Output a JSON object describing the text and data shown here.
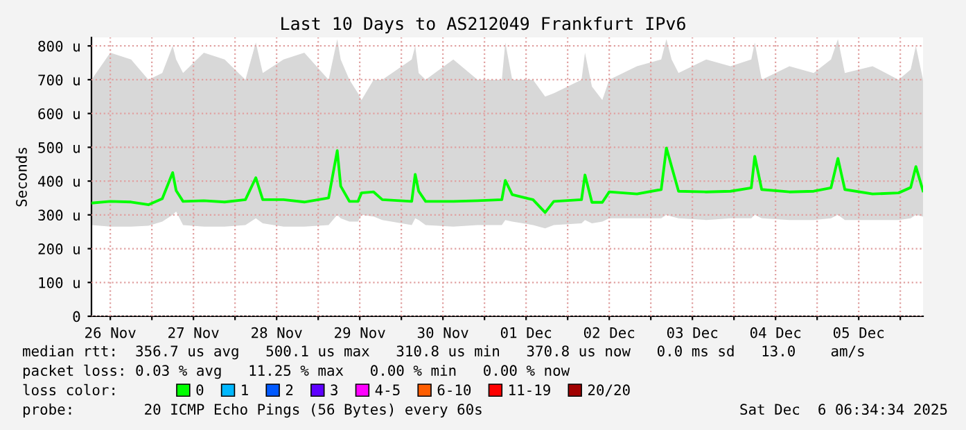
{
  "chart_data": {
    "type": "line",
    "title": "Last 10 Days to AS212049 Frankfurt IPv6",
    "ylabel": "Seconds",
    "legend_title": "loss color:",
    "legend": "bottom",
    "grid": true,
    "x": [
      "2025-11-26T06:34",
      "2025-11-26T12:00",
      "2025-11-26T18:00",
      "2025-11-26T23:00",
      "2025-11-27T03:00",
      "2025-11-27T06:00",
      "2025-11-27T07:00",
      "2025-11-27T09:00",
      "2025-11-27T15:00",
      "2025-11-27T21:00",
      "2025-11-28T03:00",
      "2025-11-28T06:00",
      "2025-11-28T08:00",
      "2025-11-28T14:00",
      "2025-11-28T20:00",
      "2025-11-29T03:00",
      "2025-11-29T05:30",
      "2025-11-29T06:30",
      "2025-11-29T09:00",
      "2025-11-29T11:30",
      "2025-11-29T12:30",
      "2025-11-29T16:00",
      "2025-11-29T18:30",
      "2025-11-30T03:00",
      "2025-11-30T04:00",
      "2025-11-30T05:00",
      "2025-11-30T07:00",
      "2025-11-30T15:00",
      "2025-11-30T22:00",
      "2025-12-01T05:00",
      "2025-12-01T06:00",
      "2025-12-01T08:00",
      "2025-12-01T14:00",
      "2025-12-01T17:30",
      "2025-12-01T20:00",
      "2025-12-02T04:00",
      "2025-12-02T05:00",
      "2025-12-02T07:00",
      "2025-12-02T10:00",
      "2025-12-02T12:00",
      "2025-12-02T20:00",
      "2025-12-03T03:00",
      "2025-12-03T04:30",
      "2025-12-03T06:00",
      "2025-12-03T08:00",
      "2025-12-03T16:00",
      "2025-12-03T23:00",
      "2025-12-04T05:00",
      "2025-12-04T06:00",
      "2025-12-04T08:00",
      "2025-12-04T16:00",
      "2025-12-04T23:00",
      "2025-12-05T04:00",
      "2025-12-05T06:00",
      "2025-12-05T08:00",
      "2025-12-05T16:00",
      "2025-12-05T23:30",
      "2025-12-06T03:00",
      "2025-12-06T04:30",
      "2025-12-06T06:34"
    ],
    "series": [
      {
        "name": "0",
        "color": "#00ff00",
        "values": [
          335,
          340,
          338,
          330,
          348,
          425,
          372,
          340,
          342,
          338,
          345,
          410,
          345,
          345,
          338,
          350,
          490,
          385,
          340,
          340,
          365,
          368,
          345,
          340,
          420,
          370,
          340,
          340,
          342,
          345,
          402,
          360,
          345,
          307,
          340,
          345,
          418,
          337,
          337,
          368,
          362,
          375,
          498,
          443,
          370,
          368,
          370,
          380,
          473,
          375,
          368,
          370,
          380,
          467,
          375,
          362,
          365,
          381,
          443,
          371
        ],
        "lower": [
          270,
          265,
          265,
          268,
          280,
          300,
          310,
          270,
          265,
          265,
          270,
          290,
          275,
          265,
          265,
          270,
          300,
          290,
          280,
          280,
          300,
          295,
          285,
          270,
          290,
          285,
          270,
          265,
          270,
          270,
          285,
          280,
          270,
          260,
          270,
          275,
          285,
          275,
          280,
          290,
          290,
          290,
          300,
          295,
          290,
          285,
          290,
          290,
          300,
          290,
          285,
          285,
          290,
          300,
          285,
          285,
          285,
          290,
          300,
          295
        ],
        "upper": [
          700,
          780,
          760,
          700,
          720,
          800,
          760,
          720,
          780,
          760,
          700,
          810,
          720,
          760,
          780,
          700,
          820,
          760,
          700,
          660,
          640,
          700,
          700,
          760,
          800,
          720,
          700,
          760,
          700,
          700,
          810,
          700,
          700,
          650,
          660,
          700,
          780,
          680,
          640,
          700,
          740,
          760,
          820,
          760,
          720,
          760,
          740,
          760,
          810,
          700,
          740,
          720,
          760,
          820,
          720,
          740,
          700,
          730,
          800,
          700
        ]
      },
      {
        "name": "1",
        "color": "#00b8ff",
        "values": [
          null,
          null,
          null,
          null,
          null,
          null,
          null,
          null,
          null,
          null,
          null,
          null,
          null,
          null,
          null,
          null,
          null,
          null,
          null,
          null,
          null,
          null,
          null,
          null,
          null,
          null,
          null,
          null,
          null,
          null,
          null,
          null,
          null,
          null,
          null,
          null,
          null,
          null,
          null,
          null,
          null,
          null,
          null,
          null,
          null,
          null,
          null,
          null,
          null,
          null,
          null,
          null,
          null,
          null,
          null,
          null,
          null,
          null,
          null,
          null
        ]
      },
      {
        "name": "2",
        "color": "#0059ff",
        "values": [
          null,
          null,
          null,
          null,
          null,
          null,
          null,
          null,
          null,
          null,
          null,
          null,
          null,
          null,
          null,
          null,
          null,
          null,
          null,
          null,
          null,
          null,
          null,
          null,
          null,
          null,
          null,
          null,
          null,
          null,
          null,
          null,
          null,
          null,
          null,
          null,
          null,
          null,
          null,
          null,
          null,
          null,
          null,
          null,
          null,
          null,
          null,
          null,
          null,
          null,
          null,
          null,
          null,
          null,
          null,
          null,
          null,
          null,
          null,
          null
        ]
      },
      {
        "name": "3",
        "color": "#5e00ff",
        "values": [
          null,
          null,
          null,
          null,
          null,
          null,
          null,
          null,
          null,
          null,
          null,
          null,
          null,
          null,
          null,
          null,
          null,
          null,
          null,
          null,
          null,
          null,
          null,
          null,
          null,
          null,
          null,
          null,
          null,
          null,
          null,
          null,
          null,
          null,
          null,
          null,
          null,
          null,
          null,
          null,
          null,
          null,
          null,
          null,
          null,
          null,
          null,
          null,
          null,
          null,
          null,
          null,
          null,
          null,
          null,
          null,
          null,
          null,
          null,
          null
        ]
      },
      {
        "name": "4-5",
        "color": "#ff00ff",
        "values": [
          null,
          null,
          null,
          null,
          null,
          null,
          null,
          null,
          null,
          null,
          null,
          null,
          null,
          null,
          null,
          null,
          null,
          null,
          null,
          null,
          null,
          null,
          null,
          null,
          null,
          null,
          null,
          null,
          null,
          null,
          null,
          null,
          null,
          null,
          null,
          null,
          null,
          null,
          null,
          null,
          null,
          null,
          null,
          null,
          null,
          null,
          null,
          null,
          null,
          null,
          null,
          null,
          null,
          null,
          null,
          null,
          null,
          null,
          null,
          null
        ]
      },
      {
        "name": "6-10",
        "color": "#ff5e00",
        "values": [
          null,
          null,
          null,
          null,
          null,
          null,
          null,
          null,
          null,
          null,
          null,
          null,
          null,
          null,
          null,
          null,
          null,
          null,
          null,
          null,
          null,
          null,
          null,
          null,
          null,
          null,
          null,
          null,
          null,
          null,
          null,
          null,
          null,
          null,
          null,
          null,
          null,
          null,
          null,
          null,
          null,
          null,
          null,
          null,
          null,
          null,
          null,
          null,
          null,
          null,
          null,
          null,
          null,
          null,
          null,
          null,
          null,
          null,
          null,
          null
        ]
      },
      {
        "name": "11-19",
        "color": "#ff0000",
        "values": [
          null,
          null,
          null,
          null,
          null,
          null,
          null,
          null,
          null,
          null,
          null,
          null,
          null,
          null,
          null,
          null,
          null,
          null,
          null,
          null,
          null,
          null,
          null,
          null,
          null,
          null,
          null,
          null,
          null,
          null,
          null,
          null,
          null,
          null,
          null,
          null,
          null,
          null,
          null,
          null,
          null,
          null,
          null,
          null,
          null,
          null,
          null,
          null,
          null,
          null,
          null,
          null,
          null,
          null,
          null,
          null,
          null,
          null,
          null,
          null
        ]
      },
      {
        "name": "20/20",
        "color": "#a10000",
        "values": [
          null,
          null,
          null,
          null,
          null,
          null,
          null,
          null,
          null,
          null,
          null,
          null,
          null,
          null,
          null,
          null,
          null,
          null,
          null,
          null,
          null,
          null,
          null,
          null,
          null,
          null,
          null,
          null,
          null,
          null,
          null,
          null,
          null,
          null,
          null,
          null,
          null,
          null,
          null,
          null,
          null,
          null,
          null,
          null,
          null,
          null,
          null,
          null,
          null,
          null,
          null,
          null,
          null,
          null,
          null,
          null,
          null,
          null,
          null,
          null
        ]
      }
    ],
    "xlim": [
      "2025-11-26T06:34",
      "2025-12-06T06:34"
    ],
    "xticks": [
      {
        "value": "2025-11-26T12:00",
        "label": "26 Nov"
      },
      {
        "value": "2025-11-27T00:00",
        "label": null
      },
      {
        "value": "2025-11-27T12:00",
        "label": "27 Nov"
      },
      {
        "value": "2025-11-28T00:00",
        "label": null
      },
      {
        "value": "2025-11-28T12:00",
        "label": "28 Nov"
      },
      {
        "value": "2025-11-29T00:00",
        "label": null
      },
      {
        "value": "2025-11-29T12:00",
        "label": "29 Nov"
      },
      {
        "value": "2025-11-30T00:00",
        "label": null
      },
      {
        "value": "2025-11-30T12:00",
        "label": "30 Nov"
      },
      {
        "value": "2025-12-01T00:00",
        "label": null
      },
      {
        "value": "2025-12-01T12:00",
        "label": "01 Dec"
      },
      {
        "value": "2025-12-02T00:00",
        "label": null
      },
      {
        "value": "2025-12-02T12:00",
        "label": "02 Dec"
      },
      {
        "value": "2025-12-03T00:00",
        "label": null
      },
      {
        "value": "2025-12-03T12:00",
        "label": "03 Dec"
      },
      {
        "value": "2025-12-04T00:00",
        "label": null
      },
      {
        "value": "2025-12-04T12:00",
        "label": "04 Dec"
      },
      {
        "value": "2025-12-05T00:00",
        "label": null
      },
      {
        "value": "2025-12-05T12:00",
        "label": "05 Dec"
      },
      {
        "value": "2025-12-06T00:00",
        "label": null
      }
    ],
    "ylim": [
      0,
      825
    ],
    "yticks": [
      0,
      {
        "value": 100,
        "label": "100 u"
      },
      {
        "value": 200,
        "label": "200 u"
      },
      {
        "value": 300,
        "label": "300 u"
      },
      {
        "value": 400,
        "label": "400 u"
      },
      {
        "value": 500,
        "label": "500 u"
      },
      {
        "value": 600,
        "label": "600 u"
      },
      {
        "value": 700,
        "label": "700 u"
      },
      {
        "value": 800,
        "label": "800 u"
      }
    ],
    "annotations": [
      "median rtt:  356.7 us avg   500.1 us max   310.8 us min   370.8 us now   0.0 ms sd   13.0    am/s",
      "packet loss: 0.03 % avg   11.25 % max   0.00 % min   0.00 % now",
      "probe:        20 ICMP Echo Pings (56 Bytes) every 60s",
      "Sat Dec  6 06:34:34 2025"
    ]
  }
}
